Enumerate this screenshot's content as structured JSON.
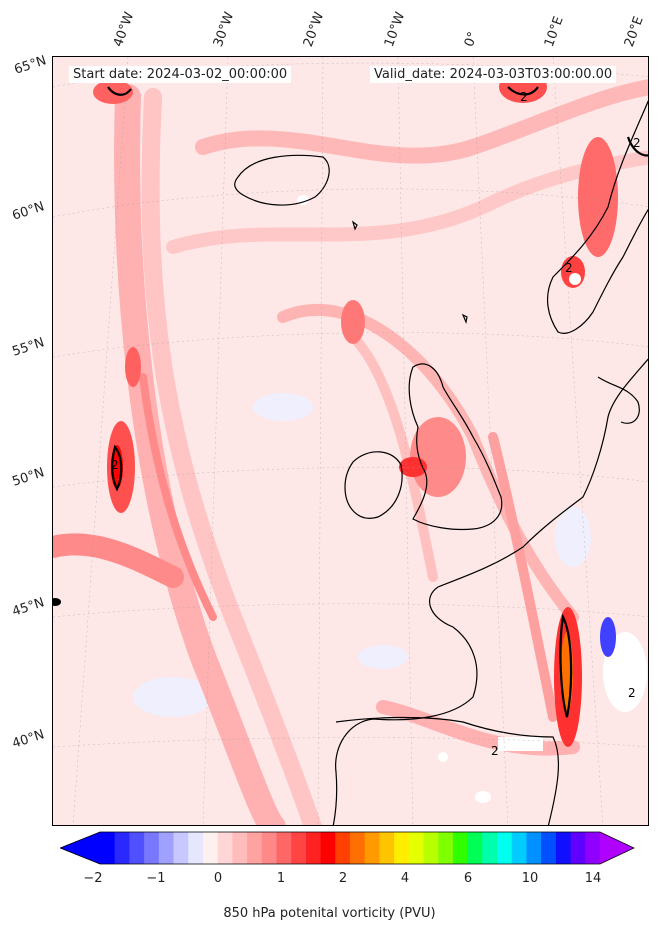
{
  "header": {
    "start_date": "Start date: 2024-03-02_00:00:00",
    "valid_date": "Valid_date: 2024-03-03T03:00:00.00"
  },
  "longitude_labels": [
    "40°W",
    "30°W",
    "20°W",
    "10°W",
    "0°",
    "10°E",
    "20°E"
  ],
  "latitude_labels": [
    "65°N",
    "60°N",
    "55°N",
    "50°N",
    "45°N",
    "40°N"
  ],
  "contour_label": "2",
  "colorbar": {
    "label": "850 hPa potenital vorticity (PVU)",
    "ticks": [
      "−2",
      "−1",
      "0",
      "1",
      "2",
      "4",
      "6",
      "10",
      "14"
    ],
    "colors": [
      "#0000ff",
      "#2828ff",
      "#5050ff",
      "#7878ff",
      "#a0a0ff",
      "#c8c8ff",
      "#e6e6ff",
      "#fff0f0",
      "#ffd6d6",
      "#ffbcbc",
      "#ffa2a2",
      "#ff8888",
      "#ff6666",
      "#ff4444",
      "#ff2222",
      "#ff0000",
      "#ff4000",
      "#ff7000",
      "#ff9a00",
      "#ffc400",
      "#ffee00",
      "#e4ff00",
      "#b8ff00",
      "#80ff00",
      "#30ff00",
      "#00ff55",
      "#00ffaa",
      "#00ffee",
      "#00ccff",
      "#0090ff",
      "#0050ff",
      "#1010ff",
      "#6000ff",
      "#9000ff"
    ],
    "under_color": "#0000ff",
    "over_color": "#b000ff"
  },
  "colors": {
    "background_field": "#fde7e7",
    "coastline": "#000000"
  }
}
